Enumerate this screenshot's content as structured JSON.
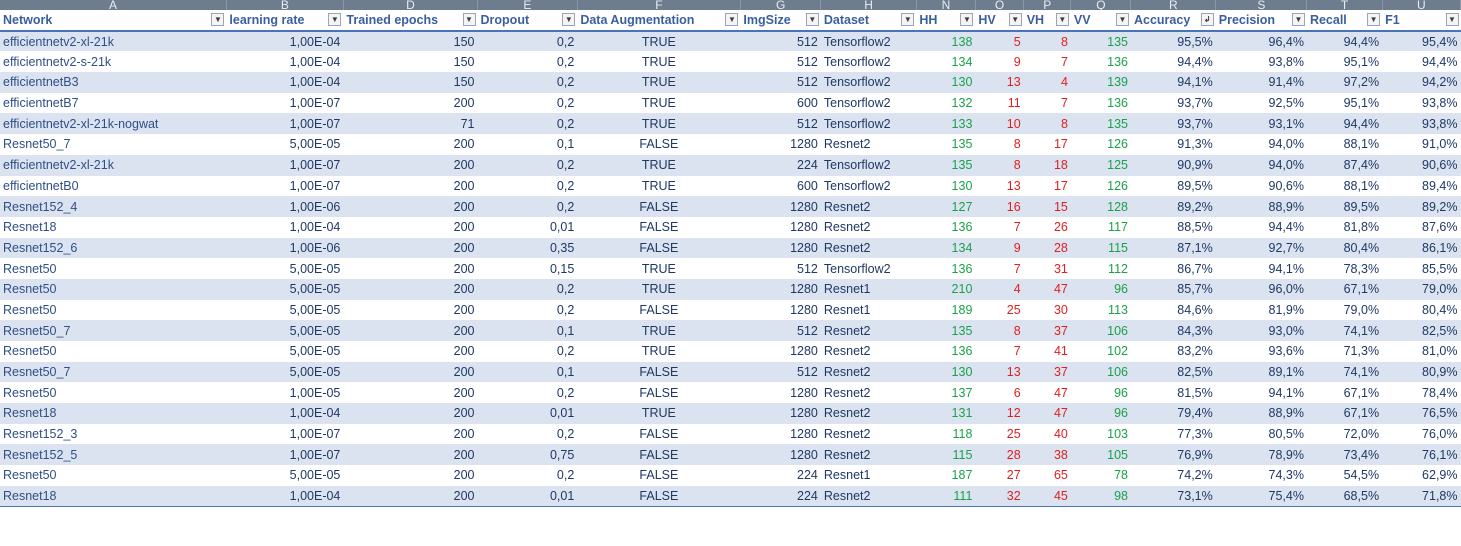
{
  "columns": [
    "A",
    "B",
    "D",
    "E",
    "F",
    "G",
    "H",
    "N",
    "O",
    "P",
    "Q",
    "R",
    "S",
    "T",
    "U"
  ],
  "headers": [
    "Network",
    "learning rate",
    "Trained epochs",
    "Dropout",
    "Data Augmentation",
    "ImgSize",
    "Dataset",
    "HH",
    "HV",
    "VH",
    "VV",
    "Accuracy",
    "Precision",
    "Recall",
    "F1"
  ],
  "sort_indicator": "Accuracy",
  "rows": [
    [
      "efficientnetv2-xl-21k",
      "1,00E-04",
      "150",
      "0,2",
      "TRUE",
      "512",
      "Tensorflow2",
      "138",
      "5",
      "8",
      "135",
      "95,5%",
      "96,4%",
      "94,4%",
      "95,4%"
    ],
    [
      "efficientnetv2-s-21k",
      "1,00E-04",
      "150",
      "0,2",
      "TRUE",
      "512",
      "Tensorflow2",
      "134",
      "9",
      "7",
      "136",
      "94,4%",
      "93,8%",
      "95,1%",
      "94,4%"
    ],
    [
      "efficientnetB3",
      "1,00E-04",
      "150",
      "0,2",
      "TRUE",
      "512",
      "Tensorflow2",
      "130",
      "13",
      "4",
      "139",
      "94,1%",
      "91,4%",
      "97,2%",
      "94,2%"
    ],
    [
      "efficientnetB7",
      "1,00E-07",
      "200",
      "0,2",
      "TRUE",
      "600",
      "Tensorflow2",
      "132",
      "11",
      "7",
      "136",
      "93,7%",
      "92,5%",
      "95,1%",
      "93,8%"
    ],
    [
      "efficientnetv2-xl-21k-nogwat",
      "1,00E-07",
      "71",
      "0,2",
      "TRUE",
      "512",
      "Tensorflow2",
      "133",
      "10",
      "8",
      "135",
      "93,7%",
      "93,1%",
      "94,4%",
      "93,8%"
    ],
    [
      "Resnet50_7",
      "5,00E-05",
      "200",
      "0,1",
      "FALSE",
      "1280",
      "Resnet2",
      "135",
      "8",
      "17",
      "126",
      "91,3%",
      "94,0%",
      "88,1%",
      "91,0%"
    ],
    [
      "efficientnetv2-xl-21k",
      "1,00E-07",
      "200",
      "0,2",
      "TRUE",
      "224",
      "Tensorflow2",
      "135",
      "8",
      "18",
      "125",
      "90,9%",
      "94,0%",
      "87,4%",
      "90,6%"
    ],
    [
      "efficientnetB0",
      "1,00E-07",
      "200",
      "0,2",
      "TRUE",
      "600",
      "Tensorflow2",
      "130",
      "13",
      "17",
      "126",
      "89,5%",
      "90,6%",
      "88,1%",
      "89,4%"
    ],
    [
      "Resnet152_4",
      "1,00E-06",
      "200",
      "0,2",
      "FALSE",
      "1280",
      "Resnet2",
      "127",
      "16",
      "15",
      "128",
      "89,2%",
      "88,9%",
      "89,5%",
      "89,2%"
    ],
    [
      "Resnet18",
      "1,00E-04",
      "200",
      "0,01",
      "FALSE",
      "1280",
      "Resnet2",
      "136",
      "7",
      "26",
      "117",
      "88,5%",
      "94,4%",
      "81,8%",
      "87,6%"
    ],
    [
      "Resnet152_6",
      "1,00E-06",
      "200",
      "0,35",
      "FALSE",
      "1280",
      "Resnet2",
      "134",
      "9",
      "28",
      "115",
      "87,1%",
      "92,7%",
      "80,4%",
      "86,1%"
    ],
    [
      "Resnet50",
      "5,00E-05",
      "200",
      "0,15",
      "TRUE",
      "512",
      "Tensorflow2",
      "136",
      "7",
      "31",
      "112",
      "86,7%",
      "94,1%",
      "78,3%",
      "85,5%"
    ],
    [
      "Resnet50",
      "5,00E-05",
      "200",
      "0,2",
      "TRUE",
      "1280",
      "Resnet1",
      "210",
      "4",
      "47",
      "96",
      "85,7%",
      "96,0%",
      "67,1%",
      "79,0%"
    ],
    [
      "Resnet50",
      "5,00E-05",
      "200",
      "0,2",
      "FALSE",
      "1280",
      "Resnet1",
      "189",
      "25",
      "30",
      "113",
      "84,6%",
      "81,9%",
      "79,0%",
      "80,4%"
    ],
    [
      "Resnet50_7",
      "5,00E-05",
      "200",
      "0,1",
      "TRUE",
      "512",
      "Resnet2",
      "135",
      "8",
      "37",
      "106",
      "84,3%",
      "93,0%",
      "74,1%",
      "82,5%"
    ],
    [
      "Resnet50",
      "5,00E-05",
      "200",
      "0,2",
      "TRUE",
      "1280",
      "Resnet2",
      "136",
      "7",
      "41",
      "102",
      "83,2%",
      "93,6%",
      "71,3%",
      "81,0%"
    ],
    [
      "Resnet50_7",
      "5,00E-05",
      "200",
      "0,1",
      "FALSE",
      "512",
      "Resnet2",
      "130",
      "13",
      "37",
      "106",
      "82,5%",
      "89,1%",
      "74,1%",
      "80,9%"
    ],
    [
      "Resnet50",
      "1,00E-05",
      "200",
      "0,2",
      "FALSE",
      "1280",
      "Resnet2",
      "137",
      "6",
      "47",
      "96",
      "81,5%",
      "94,1%",
      "67,1%",
      "78,4%"
    ],
    [
      "Resnet18",
      "1,00E-04",
      "200",
      "0,01",
      "TRUE",
      "1280",
      "Resnet2",
      "131",
      "12",
      "47",
      "96",
      "79,4%",
      "88,9%",
      "67,1%",
      "76,5%"
    ],
    [
      "Resnet152_3",
      "1,00E-07",
      "200",
      "0,2",
      "FALSE",
      "1280",
      "Resnet2",
      "118",
      "25",
      "40",
      "103",
      "77,3%",
      "80,5%",
      "72,0%",
      "76,0%"
    ],
    [
      "Resnet152_5",
      "1,00E-07",
      "200",
      "0,75",
      "FALSE",
      "1280",
      "Resnet2",
      "115",
      "28",
      "38",
      "105",
      "76,9%",
      "78,9%",
      "73,4%",
      "76,1%"
    ],
    [
      "Resnet50",
      "5,00E-05",
      "200",
      "0,2",
      "FALSE",
      "224",
      "Resnet1",
      "187",
      "27",
      "65",
      "78",
      "74,2%",
      "74,3%",
      "54,5%",
      "62,9%"
    ],
    [
      "Resnet18",
      "1,00E-04",
      "200",
      "0,01",
      "FALSE",
      "224",
      "Resnet2",
      "111",
      "32",
      "45",
      "98",
      "73,1%",
      "75,4%",
      "68,5%",
      "71,8%"
    ]
  ]
}
